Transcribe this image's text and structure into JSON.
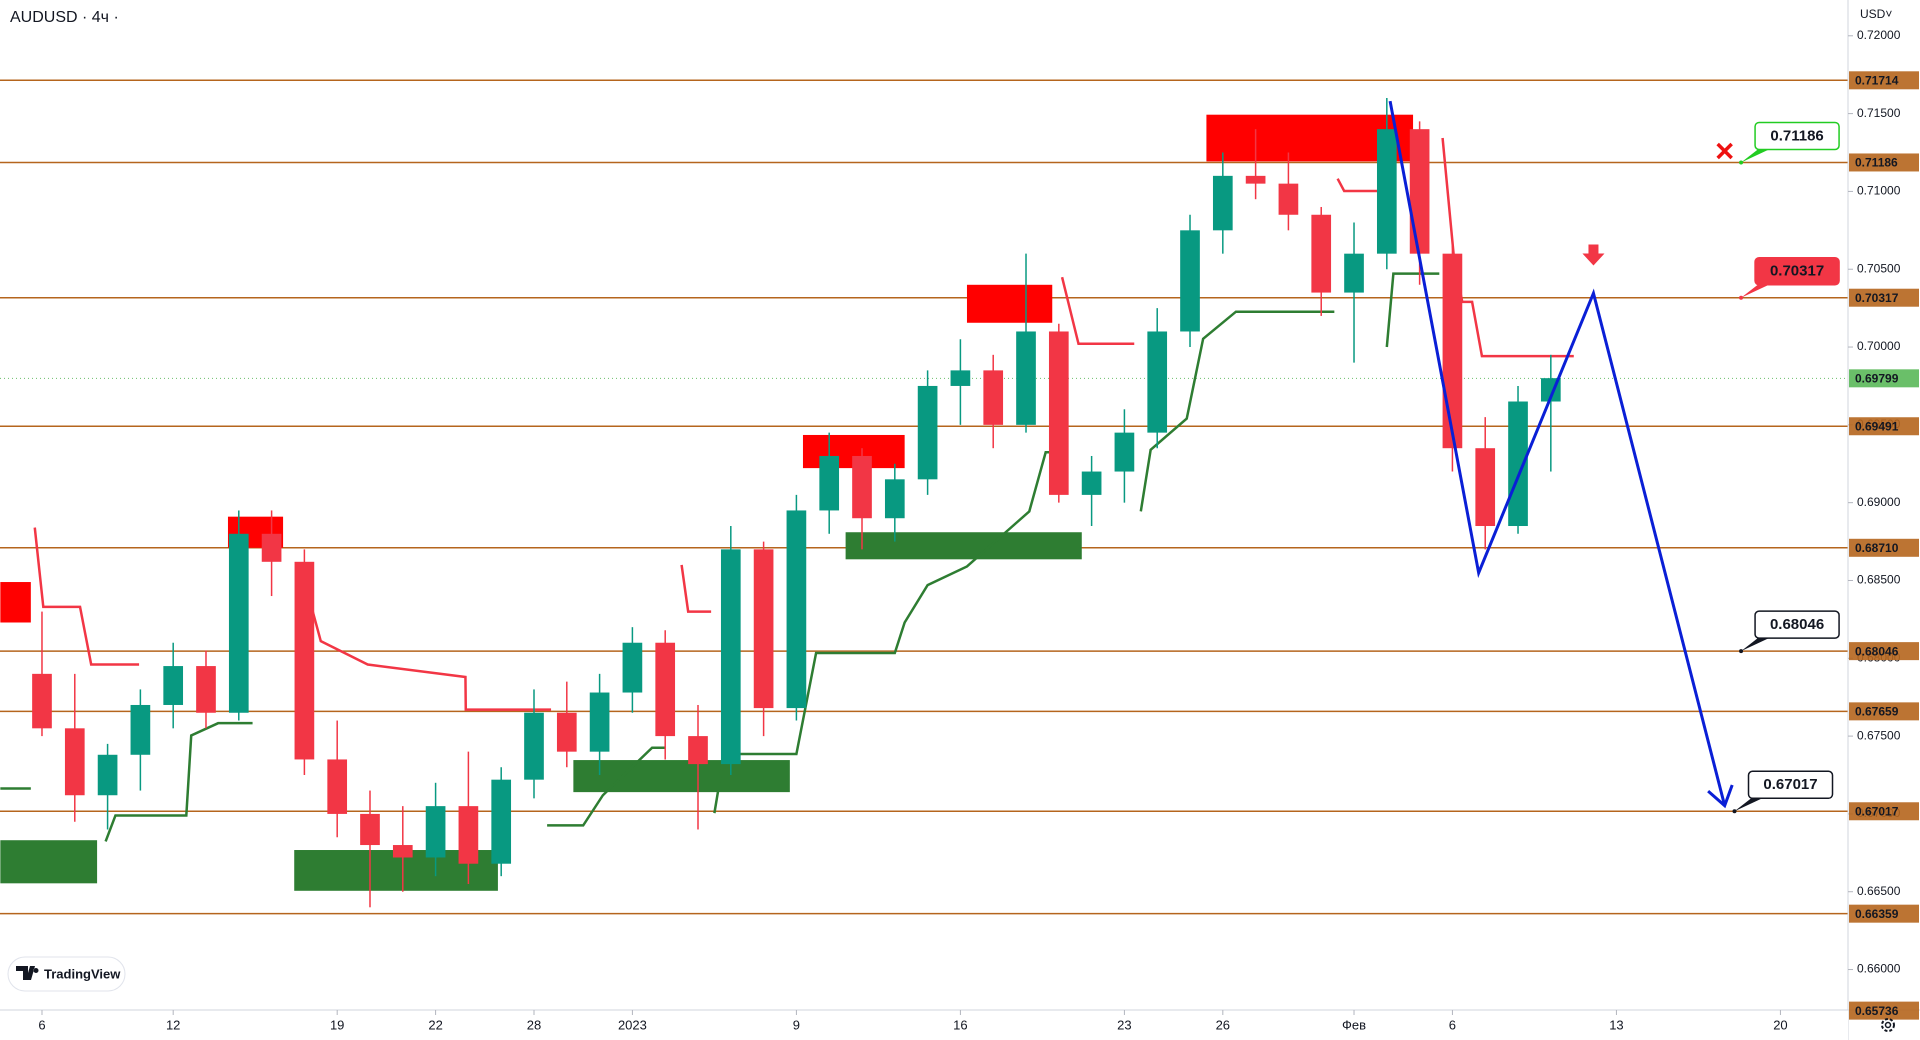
{
  "chart_data": {
    "type": "candlestick",
    "title": "AUDUSD · 4ч ·",
    "currency": "USD˅",
    "branding": "TradingView",
    "up_color": "#089981",
    "down_color": "#f23645",
    "xlim": [
      -1.28,
      55.06
    ],
    "ylim": [
      0.6574,
      0.7223
    ],
    "xticks": [
      {
        "value": 0,
        "label": "6"
      },
      {
        "value": 4,
        "label": "12"
      },
      {
        "value": 9,
        "label": "19"
      },
      {
        "value": 12,
        "label": "22"
      },
      {
        "value": 15,
        "label": "28"
      },
      {
        "value": 18,
        "label": "2023"
      },
      {
        "value": 23,
        "label": "9"
      },
      {
        "value": 28,
        "label": "16"
      },
      {
        "value": 33,
        "label": "23"
      },
      {
        "value": 36,
        "label": "26"
      },
      {
        "value": 40,
        "label": "Фев"
      },
      {
        "value": 43,
        "label": "6"
      },
      {
        "value": 48,
        "label": "13"
      },
      {
        "value": 53,
        "label": "20"
      }
    ],
    "yticks": [
      {
        "value": 0.72,
        "label": "0.72000"
      },
      {
        "value": 0.715,
        "label": "0.71500"
      },
      {
        "value": 0.71,
        "label": "0.71000"
      },
      {
        "value": 0.705,
        "label": "0.70500"
      },
      {
        "value": 0.7,
        "label": "0.70000"
      },
      {
        "value": 0.695,
        "label": "0.69500"
      },
      {
        "value": 0.69,
        "label": "0.69000"
      },
      {
        "value": 0.685,
        "label": "0.68500"
      },
      {
        "value": 0.68,
        "label": "0.68000"
      },
      {
        "value": 0.675,
        "label": "0.67500"
      },
      {
        "value": 0.67,
        "label": "0.67000"
      },
      {
        "value": 0.665,
        "label": "0.66500"
      },
      {
        "value": 0.66,
        "label": "0.66000"
      }
    ],
    "open": [
      0.679,
      0.6755,
      0.6712,
      0.6738,
      0.677,
      0.6795,
      0.6765,
      0.688,
      0.6862,
      0.6735,
      0.67,
      0.668,
      0.6672,
      0.6705,
      0.6668,
      0.6722,
      0.6765,
      0.674,
      0.6778,
      0.681,
      0.675,
      0.6732,
      0.687,
      0.6768,
      0.6895,
      0.693,
      0.689,
      0.6915,
      0.6975,
      0.6985,
      0.695,
      0.701,
      0.6905,
      0.692,
      0.6945,
      0.701,
      0.7075,
      0.711,
      0.7105,
      0.7085,
      0.7035,
      0.706,
      0.714,
      0.706,
      0.6935,
      0.6885,
      0.6965
    ],
    "high": [
      0.683,
      0.679,
      0.6745,
      0.678,
      0.681,
      0.6805,
      0.6895,
      0.6895,
      0.687,
      0.676,
      0.6715,
      0.6705,
      0.672,
      0.674,
      0.673,
      0.678,
      0.6785,
      0.679,
      0.682,
      0.6818,
      0.677,
      0.6885,
      0.6875,
      0.6905,
      0.6945,
      0.6935,
      0.6925,
      0.6985,
      0.7005,
      0.6995,
      0.706,
      0.7015,
      0.693,
      0.696,
      0.7025,
      0.7085,
      0.7125,
      0.714,
      0.7125,
      0.709,
      0.708,
      0.716,
      0.7145,
      0.7065,
      0.6955,
      0.6975,
      0.6995
    ],
    "low": [
      0.675,
      0.6695,
      0.669,
      0.6715,
      0.6755,
      0.6755,
      0.676,
      0.684,
      0.6725,
      0.6685,
      0.664,
      0.665,
      0.666,
      0.6655,
      0.666,
      0.671,
      0.673,
      0.6725,
      0.6765,
      0.6735,
      0.669,
      0.6725,
      0.675,
      0.676,
      0.688,
      0.687,
      0.6875,
      0.6905,
      0.695,
      0.6935,
      0.6945,
      0.69,
      0.6885,
      0.69,
      0.6935,
      0.7,
      0.706,
      0.7095,
      0.7075,
      0.702,
      0.699,
      0.705,
      0.704,
      0.692,
      0.687,
      0.688,
      0.692
    ],
    "close": [
      0.6755,
      0.6712,
      0.6738,
      0.677,
      0.6795,
      0.6765,
      0.688,
      0.6862,
      0.6735,
      0.67,
      0.668,
      0.6672,
      0.6705,
      0.6668,
      0.6722,
      0.6765,
      0.674,
      0.6778,
      0.681,
      0.675,
      0.6732,
      0.687,
      0.6768,
      0.6895,
      0.693,
      0.689,
      0.6915,
      0.6975,
      0.6985,
      0.695,
      0.701,
      0.6905,
      0.692,
      0.6945,
      0.701,
      0.7075,
      0.711,
      0.7105,
      0.7085,
      0.7035,
      0.706,
      0.714,
      0.706,
      0.6935,
      0.6885,
      0.6965,
      0.698
    ],
    "current_price": 0.69799,
    "current_color": "#6abf69",
    "level_color": "#b5651d",
    "levels": [
      0.71714,
      0.71186,
      0.70317,
      0.69491,
      {
        "value": 0.6871,
        "label": "0.68710"
      },
      0.68046,
      0.67659,
      0.67017,
      0.66359,
      0.65736
    ],
    "zones": [
      {
        "x": [
          -1.27,
          -0.34
        ],
        "y": [
          0.6823,
          0.6849
        ],
        "color": "#ff0000"
      },
      {
        "x": [
          5.67,
          7.35
        ],
        "y": [
          0.6871,
          0.6891
        ],
        "color": "#ff0000"
      },
      {
        "x": [
          23.2,
          26.3
        ],
        "y": [
          0.69222,
          0.69435
        ],
        "color": "#ff0000"
      },
      {
        "x": [
          28.2,
          30.8
        ],
        "y": [
          0.70156,
          0.704
        ],
        "color": "#ff0000"
      },
      {
        "x": [
          35.5,
          41.8
        ],
        "y": [
          0.71193,
          0.71493
        ],
        "color": "#ff0000"
      },
      {
        "x": [
          -1.27,
          1.68
        ],
        "y": [
          0.66554,
          0.66831
        ],
        "color": "#2e7d32"
      },
      {
        "x": [
          7.69,
          13.9
        ],
        "y": [
          0.66506,
          0.66768
        ],
        "color": "#2e7d32"
      },
      {
        "x": [
          16.2,
          22.8
        ],
        "y": [
          0.6714,
          0.67346
        ],
        "color": "#2e7d32"
      },
      {
        "x": [
          24.5,
          31.7
        ],
        "y": [
          0.68636,
          0.6881
        ],
        "color": "#2e7d32"
      }
    ],
    "supertrend": [
      {
        "color": "#f23645",
        "x": [
          -0.22,
          0.04,
          1.16,
          1.5,
          2.96
        ],
        "y": [
          0.6884,
          0.6833,
          0.6833,
          0.6796,
          0.6796
        ]
      },
      {
        "color": "#f23645",
        "x": [
          7.87,
          8.5,
          9.93,
          12.91,
          12.92,
          15.52
        ],
        "y": [
          0.686,
          0.6811,
          0.6796,
          0.6788,
          0.6767,
          0.6767
        ]
      },
      {
        "color": "#f23645",
        "x": [
          19.5,
          19.7,
          20.4
        ],
        "y": [
          0.686,
          0.683,
          0.683
        ]
      },
      {
        "color": "#f23645",
        "x": [
          31.1,
          31.6,
          33.3
        ],
        "y": [
          0.70449,
          0.70021,
          0.70021
        ]
      },
      {
        "color": "#f23645",
        "x": [
          39.5,
          39.7,
          40.8
        ],
        "y": [
          0.71082,
          0.71003,
          0.71003
        ]
      },
      {
        "color": "#f23645",
        "x": [
          42.7,
          43.06,
          43.3,
          43.6,
          43.9,
          46.7
        ],
        "y": [
          0.71343,
          0.70544,
          0.7029,
          0.7029,
          0.69942,
          0.69942
        ]
      },
      {
        "color": "#2e7d32",
        "x": [
          -1.27,
          -0.34
        ],
        "y": [
          0.67163,
          0.67163
        ]
      },
      {
        "color": "#2e7d32",
        "x": [
          1.94,
          2.24,
          4.4,
          4.55,
          5.37,
          6.42
        ],
        "y": [
          0.66823,
          0.6699,
          0.6699,
          0.67504,
          0.67583,
          0.67583
        ]
      },
      {
        "color": "#2e7d32",
        "x": [
          15.4,
          16.5,
          17.1,
          18.6,
          19.0
        ],
        "y": [
          0.66926,
          0.66926,
          0.6712,
          0.67425,
          0.67425
        ]
      },
      {
        "color": "#2e7d32",
        "x": [
          20.5,
          20.8,
          23.0,
          23.6,
          26.0,
          26.3,
          27.0,
          28.2,
          30.1,
          30.6,
          31.1
        ],
        "y": [
          0.67005,
          0.67385,
          0.67385,
          0.68034,
          0.68034,
          0.6823,
          0.6847,
          0.6859,
          0.68944,
          0.69324,
          0.69324
        ]
      },
      {
        "color": "#2e7d32",
        "x": [
          33.5,
          33.8,
          34.9,
          35.4,
          36.4,
          39.4
        ],
        "y": [
          0.68944,
          0.6934,
          0.6954,
          0.70053,
          0.70227,
          0.70227
        ]
      },
      {
        "color": "#2e7d32",
        "x": [
          41.0,
          41.2,
          42.6
        ],
        "y": [
          0.7,
          0.70472,
          0.70472
        ]
      }
    ],
    "projection": {
      "color": "#0a1fd6",
      "x": [
        41.1,
        43.8,
        47.3,
        51.3
      ],
      "y": [
        0.7158,
        0.68549,
        0.70346,
        0.67053
      ]
    },
    "markers": [
      {
        "shape": "cross",
        "x": 51.3,
        "y": 0.7126,
        "color": "#ee1111"
      },
      {
        "shape": "arrow-down",
        "x": 47.3,
        "y": 0.7053,
        "color": "#f23645"
      }
    ],
    "callouts": [
      {
        "value": 0.71186,
        "x": 51.8,
        "color": "#22cc22",
        "fill": "#ffffff",
        "text_color": "#22aa22"
      },
      {
        "value": 0.70317,
        "x": 51.8,
        "color": "#f23645",
        "fill": "#f23645",
        "text_color": "#ffffff"
      },
      {
        "value": 0.68046,
        "x": 51.8,
        "color": "#131722",
        "fill": "#ffffff",
        "text_color": "#131722"
      },
      {
        "value": 0.67017,
        "x": 51.6,
        "color": "#131722",
        "fill": "#ffffff",
        "text_color": "#131722"
      }
    ]
  }
}
